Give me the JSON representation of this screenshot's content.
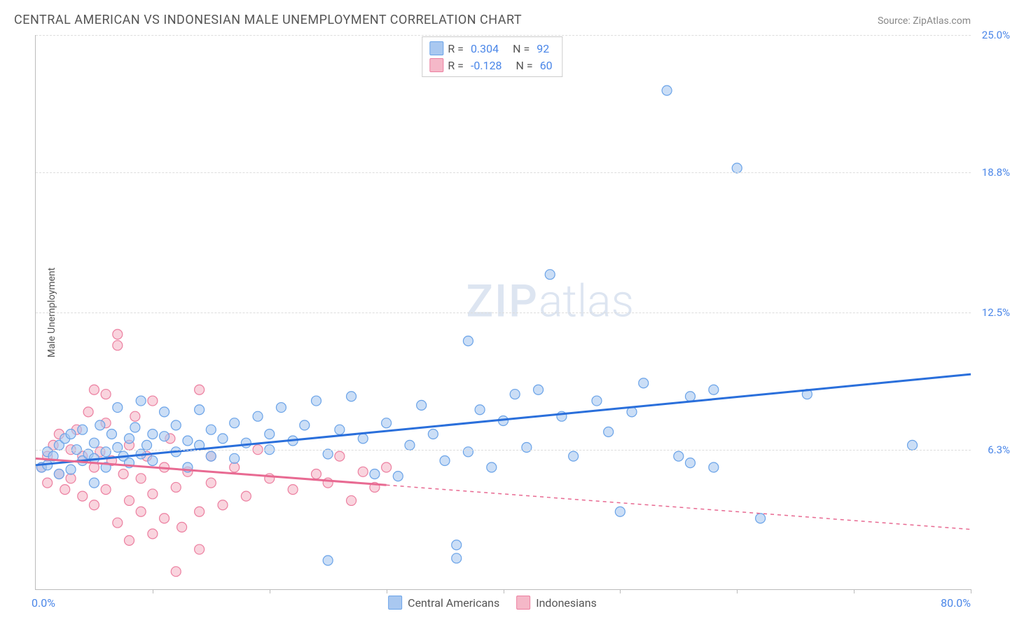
{
  "header": {
    "title": "CENTRAL AMERICAN VS INDONESIAN MALE UNEMPLOYMENT CORRELATION CHART",
    "source_prefix": "Source: ",
    "source": "ZipAtlas.com"
  },
  "watermark": {
    "zip": "ZIP",
    "atlas": "atlas"
  },
  "chart": {
    "type": "scatter",
    "xlim": [
      0,
      80
    ],
    "ylim": [
      0,
      25
    ],
    "x_min_label": "0.0%",
    "x_max_label": "80.0%",
    "y_ticks": [
      6.3,
      12.5,
      18.8,
      25.0
    ],
    "y_tick_labels": [
      "6.3%",
      "12.5%",
      "18.8%",
      "25.0%"
    ],
    "x_ticks": [
      10,
      20,
      30,
      40,
      50,
      60,
      70,
      80
    ],
    "y_axis_title": "Male Unemployment",
    "grid_color": "#dddddd",
    "axis_color": "#bbbbbb",
    "background_color": "#ffffff",
    "marker_radius": 7,
    "marker_stroke_width": 1.2,
    "trend_line_width": 3,
    "series": [
      {
        "name": "Central Americans",
        "color_fill": "#a9c8f0",
        "color_stroke": "#6aa3e8",
        "r_label": "R =",
        "r_value": "0.304",
        "n_label": "N =",
        "n_value": "92",
        "trend": {
          "solid_start": [
            0,
            5.6
          ],
          "solid_end": [
            80,
            9.7
          ],
          "dash_end": null,
          "color": "#2a6fdb"
        },
        "points": [
          [
            0.5,
            5.5
          ],
          [
            1,
            6.2
          ],
          [
            1,
            5.6
          ],
          [
            1.5,
            6.0
          ],
          [
            2,
            6.5
          ],
          [
            2,
            5.2
          ],
          [
            2.5,
            6.8
          ],
          [
            3,
            5.4
          ],
          [
            3,
            7.0
          ],
          [
            3.5,
            6.3
          ],
          [
            4,
            5.8
          ],
          [
            4,
            7.2
          ],
          [
            4.5,
            6.1
          ],
          [
            5,
            6.6
          ],
          [
            5,
            5.9
          ],
          [
            5.5,
            7.4
          ],
          [
            6,
            6.2
          ],
          [
            6,
            5.5
          ],
          [
            6.5,
            7.0
          ],
          [
            7,
            6.4
          ],
          [
            7,
            8.2
          ],
          [
            7.5,
            6.0
          ],
          [
            8,
            6.8
          ],
          [
            8,
            5.7
          ],
          [
            8.5,
            7.3
          ],
          [
            9,
            6.1
          ],
          [
            9,
            8.5
          ],
          [
            9.5,
            6.5
          ],
          [
            10,
            7.0
          ],
          [
            10,
            5.8
          ],
          [
            11,
            6.9
          ],
          [
            11,
            8.0
          ],
          [
            12,
            6.2
          ],
          [
            12,
            7.4
          ],
          [
            13,
            6.7
          ],
          [
            13,
            5.5
          ],
          [
            14,
            6.5
          ],
          [
            14,
            8.1
          ],
          [
            15,
            7.2
          ],
          [
            15,
            6.0
          ],
          [
            16,
            6.8
          ],
          [
            17,
            7.5
          ],
          [
            17,
            5.9
          ],
          [
            18,
            6.6
          ],
          [
            19,
            7.8
          ],
          [
            20,
            7.0
          ],
          [
            20,
            6.3
          ],
          [
            21,
            8.2
          ],
          [
            22,
            6.7
          ],
          [
            23,
            7.4
          ],
          [
            24,
            8.5
          ],
          [
            25,
            6.1
          ],
          [
            25,
            1.3
          ],
          [
            26,
            7.2
          ],
          [
            27,
            8.7
          ],
          [
            28,
            6.8
          ],
          [
            29,
            5.2
          ],
          [
            30,
            7.5
          ],
          [
            31,
            5.1
          ],
          [
            32,
            6.5
          ],
          [
            33,
            8.3
          ],
          [
            34,
            7.0
          ],
          [
            35,
            5.8
          ],
          [
            36,
            1.4
          ],
          [
            37,
            11.2
          ],
          [
            37,
            6.2
          ],
          [
            38,
            8.1
          ],
          [
            39,
            5.5
          ],
          [
            40,
            7.6
          ],
          [
            41,
            8.8
          ],
          [
            42,
            6.4
          ],
          [
            43,
            9.0
          ],
          [
            44,
            14.2
          ],
          [
            45,
            7.8
          ],
          [
            46,
            6.0
          ],
          [
            48,
            8.5
          ],
          [
            50,
            3.5
          ],
          [
            49,
            7.1
          ],
          [
            51,
            8.0
          ],
          [
            52,
            9.3
          ],
          [
            36,
            2.0
          ],
          [
            54,
            22.5
          ],
          [
            55,
            6.0
          ],
          [
            56,
            8.7
          ],
          [
            58,
            9.0
          ],
          [
            60,
            19.0
          ],
          [
            58,
            5.5
          ],
          [
            62,
            3.2
          ],
          [
            66,
            8.8
          ],
          [
            75,
            6.5
          ],
          [
            56,
            5.7
          ],
          [
            5,
            4.8
          ]
        ]
      },
      {
        "name": "Indonesians",
        "color_fill": "#f5b8c8",
        "color_stroke": "#ec7fa0",
        "r_label": "R =",
        "r_value": "-0.128",
        "n_label": "N =",
        "n_value": "60",
        "trend": {
          "solid_start": [
            0,
            5.9
          ],
          "solid_end": [
            30,
            4.7
          ],
          "dash_end": [
            80,
            2.7
          ],
          "color": "#e86a92"
        },
        "points": [
          [
            0.5,
            5.5
          ],
          [
            1,
            6.0
          ],
          [
            1,
            4.8
          ],
          [
            1.5,
            6.5
          ],
          [
            2,
            5.2
          ],
          [
            2,
            7.0
          ],
          [
            2.5,
            4.5
          ],
          [
            3,
            6.3
          ],
          [
            3,
            5.0
          ],
          [
            3.5,
            7.2
          ],
          [
            4,
            4.2
          ],
          [
            4,
            6.0
          ],
          [
            4.5,
            8.0
          ],
          [
            5,
            5.5
          ],
          [
            5,
            3.8
          ],
          [
            5,
            9.0
          ],
          [
            5.5,
            6.2
          ],
          [
            6,
            4.5
          ],
          [
            6,
            7.5
          ],
          [
            6.5,
            5.8
          ],
          [
            7,
            11.5
          ],
          [
            7,
            11.0
          ],
          [
            7,
            3.0
          ],
          [
            7.5,
            5.2
          ],
          [
            8,
            6.5
          ],
          [
            8,
            4.0
          ],
          [
            8.5,
            7.8
          ],
          [
            9,
            5.0
          ],
          [
            9,
            3.5
          ],
          [
            9.5,
            6.0
          ],
          [
            10,
            4.3
          ],
          [
            10,
            8.5
          ],
          [
            10,
            2.5
          ],
          [
            11,
            5.5
          ],
          [
            11,
            3.2
          ],
          [
            11.5,
            6.8
          ],
          [
            12,
            4.6
          ],
          [
            12.5,
            2.8
          ],
          [
            13,
            5.3
          ],
          [
            14,
            3.5
          ],
          [
            14,
            9.0
          ],
          [
            15,
            4.8
          ],
          [
            15,
            6.0
          ],
          [
            16,
            3.8
          ],
          [
            17,
            5.5
          ],
          [
            18,
            4.2
          ],
          [
            19,
            6.3
          ],
          [
            20,
            5.0
          ],
          [
            22,
            4.5
          ],
          [
            12,
            0.8
          ],
          [
            24,
            5.2
          ],
          [
            25,
            4.8
          ],
          [
            26,
            6.0
          ],
          [
            27,
            4.0
          ],
          [
            28,
            5.3
          ],
          [
            29,
            4.6
          ],
          [
            30,
            5.5
          ],
          [
            14,
            1.8
          ],
          [
            8,
            2.2
          ],
          [
            6,
            8.8
          ]
        ]
      }
    ]
  },
  "legend_bottom": {
    "items": [
      {
        "label": "Central Americans",
        "fill": "#a9c8f0",
        "stroke": "#6aa3e8"
      },
      {
        "label": "Indonesians",
        "fill": "#f5b8c8",
        "stroke": "#ec7fa0"
      }
    ]
  }
}
